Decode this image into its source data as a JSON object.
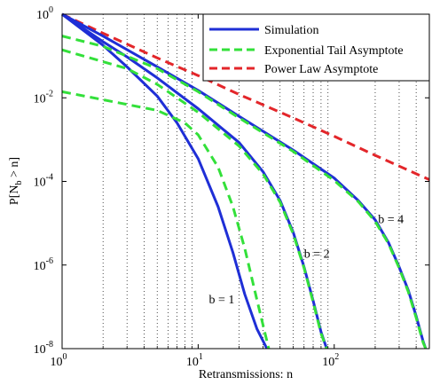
{
  "chart_data": {
    "type": "line",
    "xlabel": "Retransmissions: n",
    "ylabel_main": "P[N",
    "ylabel_sub": "b",
    "ylabel_tail": " > n]",
    "xscale": "log",
    "yscale": "log",
    "xlim": [
      1,
      500
    ],
    "ylim": [
      1e-08,
      1
    ],
    "grid": "x-axis minor dotted",
    "legend_position": "top-right",
    "x_ticks": [
      {
        "value": 1,
        "base": "10",
        "exp": "0"
      },
      {
        "value": 10,
        "base": "10",
        "exp": "1"
      },
      {
        "value": 100,
        "base": "10",
        "exp": "2"
      }
    ],
    "y_ticks": [
      {
        "value": 1,
        "base": "10",
        "exp": "0"
      },
      {
        "value": 0.01,
        "base": "10",
        "exp": "-2"
      },
      {
        "value": 0.0001,
        "base": "10",
        "exp": "-4"
      },
      {
        "value": 1e-06,
        "base": "10",
        "exp": "-6"
      },
      {
        "value": 1e-08,
        "base": "10",
        "exp": "-8"
      }
    ],
    "legend": [
      {
        "label": "Simulation",
        "color": "#1f2fd6",
        "dash": "solid"
      },
      {
        "label": "Exponential Tail Asymptote",
        "color": "#33e03a",
        "dash": "dashed"
      },
      {
        "label": "Power Law Asymptote",
        "color": "#e3262a",
        "dash": "dashed"
      }
    ],
    "annotations": [
      {
        "text": "b = 1",
        "x": 12,
        "y": 1.2e-07
      },
      {
        "text": "b = 2",
        "x": 60,
        "y": 1.5e-06
      },
      {
        "text": "b = 4",
        "x": 210,
        "y": 1e-05
      }
    ],
    "series": [
      {
        "kind": "power",
        "color": "#e3262a",
        "dash": "dashed",
        "points": [
          [
            1,
            1
          ],
          [
            2,
            0.35
          ],
          [
            5,
            0.09
          ],
          [
            10,
            0.034
          ],
          [
            20,
            0.012
          ],
          [
            50,
            0.0033
          ],
          [
            100,
            0.0012
          ],
          [
            200,
            0.00042
          ],
          [
            500,
            0.00011
          ]
        ]
      },
      {
        "kind": "simulation",
        "color": "#1f2fd6",
        "dash": "solid",
        "points": [
          [
            1,
            1
          ],
          [
            2,
            0.18
          ],
          [
            3,
            0.055
          ],
          [
            5,
            0.011
          ],
          [
            7,
            0.0025
          ],
          [
            10,
            0.00035
          ],
          [
            14,
            2.5e-05
          ],
          [
            18,
            2e-06
          ],
          [
            22,
            2e-07
          ],
          [
            27,
            3e-08
          ],
          [
            32,
            1e-08
          ]
        ]
      },
      {
        "kind": "simulation",
        "color": "#1f2fd6",
        "dash": "solid",
        "points": [
          [
            1,
            1
          ],
          [
            2,
            0.22
          ],
          [
            3,
            0.095
          ],
          [
            5,
            0.03
          ],
          [
            10,
            0.0055
          ],
          [
            20,
            0.00085
          ],
          [
            30,
            0.00017
          ],
          [
            40,
            3.5e-05
          ],
          [
            50,
            6e-06
          ],
          [
            60,
            9e-07
          ],
          [
            70,
            1.4e-07
          ],
          [
            80,
            2.5e-08
          ],
          [
            88,
            1e-08
          ]
        ]
      },
      {
        "kind": "simulation",
        "color": "#1f2fd6",
        "dash": "solid",
        "points": [
          [
            1,
            1
          ],
          [
            2,
            0.3
          ],
          [
            5,
            0.055
          ],
          [
            10,
            0.015
          ],
          [
            20,
            0.0036
          ],
          [
            50,
            0.00056
          ],
          [
            100,
            0.00012
          ],
          [
            150,
            3.5e-05
          ],
          [
            200,
            1.2e-05
          ],
          [
            250,
            3.5e-06
          ],
          [
            300,
            9e-07
          ],
          [
            350,
            2.5e-07
          ],
          [
            400,
            6e-08
          ],
          [
            450,
            1.5e-08
          ],
          [
            470,
            1e-08
          ]
        ]
      },
      {
        "kind": "exponential",
        "color": "#33e03a",
        "dash": "dashed",
        "points": [
          [
            1,
            0.014
          ],
          [
            5,
            0.005
          ],
          [
            8,
            0.0025
          ],
          [
            10,
            0.0013
          ],
          [
            14,
            0.00022
          ],
          [
            18,
            2.5e-05
          ],
          [
            22,
            2.5e-06
          ],
          [
            27,
            1.5e-07
          ],
          [
            33,
            1e-08
          ]
        ]
      },
      {
        "kind": "exponential",
        "color": "#33e03a",
        "dash": "dashed",
        "points": [
          [
            1,
            0.14
          ],
          [
            3,
            0.05
          ],
          [
            5,
            0.021
          ],
          [
            10,
            0.0045
          ],
          [
            20,
            0.0007
          ],
          [
            30,
            0.00015
          ],
          [
            40,
            3.2e-05
          ],
          [
            50,
            5.5e-06
          ],
          [
            60,
            8.5e-07
          ],
          [
            70,
            1.3e-07
          ],
          [
            80,
            2.3e-08
          ],
          [
            88,
            1e-08
          ]
        ]
      },
      {
        "kind": "exponential",
        "color": "#33e03a",
        "dash": "dashed",
        "points": [
          [
            1,
            0.3
          ],
          [
            2,
            0.17
          ],
          [
            5,
            0.05
          ],
          [
            10,
            0.014
          ],
          [
            20,
            0.0033
          ],
          [
            50,
            0.00052
          ],
          [
            100,
            0.000105
          ],
          [
            150,
            3.3e-05
          ],
          [
            200,
            1.1e-05
          ],
          [
            250,
            3.3e-06
          ],
          [
            300,
            8.5e-07
          ],
          [
            350,
            2.3e-07
          ],
          [
            400,
            5.5e-08
          ],
          [
            450,
            1.4e-08
          ],
          [
            470,
            1e-08
          ]
        ]
      }
    ]
  }
}
